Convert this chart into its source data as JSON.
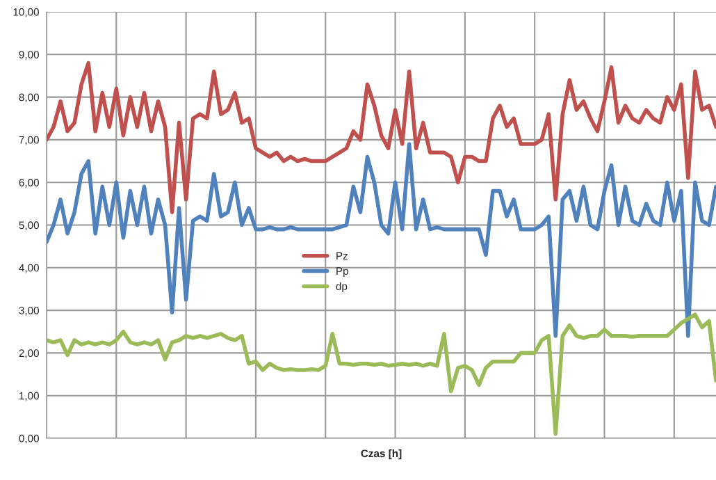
{
  "chart_data": {
    "type": "line",
    "xlabel": "Czas [h]",
    "categories": [
      null,
      null,
      null,
      null,
      null,
      null,
      null,
      null,
      null,
      null,
      null,
      null,
      null,
      null,
      null,
      null,
      null,
      null,
      null,
      null,
      null,
      null,
      null,
      null,
      null,
      null,
      null,
      null,
      null,
      null,
      null,
      null,
      null,
      null,
      null,
      null,
      null,
      null,
      null,
      null,
      null,
      null,
      null,
      null,
      null,
      null,
      null,
      null,
      null,
      null,
      null,
      null,
      null,
      null,
      null,
      null,
      null,
      null,
      null,
      null,
      null,
      null,
      null,
      null,
      null,
      null,
      null,
      null,
      null,
      null,
      null,
      null,
      null,
      null,
      null,
      null,
      null,
      null,
      null,
      null,
      null,
      null,
      null,
      null,
      null,
      null,
      null,
      null,
      null,
      null,
      null,
      null,
      null,
      null,
      null,
      null,
      null
    ],
    "series": [
      {
        "name": "Pz",
        "color": "#c0504d",
        "values": [
          7.0,
          7.3,
          7.9,
          7.2,
          7.4,
          8.3,
          8.8,
          7.2,
          8.1,
          7.3,
          8.2,
          7.1,
          8.0,
          7.3,
          8.1,
          7.2,
          7.9,
          7.3,
          5.3,
          7.4,
          5.6,
          7.5,
          7.6,
          7.5,
          8.6,
          7.6,
          7.7,
          8.1,
          7.4,
          7.5,
          6.8,
          6.7,
          6.6,
          6.7,
          6.5,
          6.6,
          6.5,
          6.55,
          6.5,
          6.5,
          6.5,
          6.6,
          6.7,
          6.8,
          7.2,
          7.0,
          8.3,
          7.8,
          7.1,
          6.8,
          7.7,
          6.9,
          8.6,
          6.8,
          7.4,
          6.7,
          6.7,
          6.7,
          6.6,
          6.0,
          6.6,
          6.6,
          6.5,
          6.5,
          7.5,
          7.8,
          7.3,
          7.5,
          6.9,
          6.9,
          6.9,
          7.0,
          7.6,
          5.6,
          7.6,
          8.4,
          7.7,
          7.9,
          7.5,
          7.2,
          7.9,
          8.7,
          7.4,
          7.8,
          7.5,
          7.4,
          7.7,
          7.5,
          7.4,
          8.0,
          7.7,
          8.3,
          6.1,
          8.6,
          7.7,
          7.8,
          7.3
        ]
      },
      {
        "name": "Pp",
        "color": "#4f81bd",
        "values": [
          4.6,
          5.0,
          5.6,
          4.8,
          5.3,
          6.2,
          6.5,
          4.8,
          5.9,
          5.0,
          6.0,
          4.7,
          5.8,
          5.0,
          5.9,
          4.8,
          5.6,
          5.0,
          2.95,
          5.4,
          3.25,
          5.1,
          5.2,
          5.1,
          6.2,
          5.2,
          5.3,
          6.0,
          5.0,
          5.4,
          4.9,
          4.9,
          4.95,
          4.9,
          4.9,
          4.95,
          4.9,
          4.9,
          4.9,
          4.9,
          4.9,
          4.9,
          4.95,
          5.0,
          5.9,
          5.3,
          6.6,
          6.0,
          5.0,
          4.8,
          6.0,
          4.9,
          6.9,
          4.9,
          5.6,
          4.9,
          4.95,
          4.9,
          4.9,
          4.9,
          4.9,
          4.9,
          4.9,
          4.3,
          5.8,
          5.8,
          5.2,
          5.6,
          4.9,
          4.9,
          4.9,
          5.0,
          5.2,
          2.4,
          5.6,
          5.8,
          5.1,
          5.9,
          5.0,
          4.9,
          5.8,
          6.4,
          5.0,
          5.9,
          5.1,
          5.0,
          5.5,
          5.1,
          5.0,
          6.0,
          5.1,
          5.8,
          2.4,
          6.0,
          5.1,
          5.0,
          5.9
        ]
      },
      {
        "name": "dp",
        "color": "#9bbb59",
        "values": [
          2.3,
          2.25,
          2.3,
          1.95,
          2.3,
          2.2,
          2.25,
          2.2,
          2.25,
          2.2,
          2.3,
          2.5,
          2.25,
          2.2,
          2.25,
          2.2,
          2.3,
          1.85,
          2.25,
          2.3,
          2.4,
          2.35,
          2.4,
          2.35,
          2.4,
          2.45,
          2.35,
          2.3,
          2.4,
          1.75,
          1.8,
          1.6,
          1.75,
          1.65,
          1.6,
          1.62,
          1.6,
          1.6,
          1.62,
          1.6,
          1.7,
          2.45,
          1.75,
          1.75,
          1.72,
          1.75,
          1.75,
          1.72,
          1.75,
          1.7,
          1.72,
          1.75,
          1.72,
          1.75,
          1.7,
          1.75,
          1.7,
          2.45,
          1.1,
          1.65,
          1.7,
          1.6,
          1.25,
          1.65,
          1.8,
          1.8,
          1.8,
          1.8,
          2.0,
          2.0,
          2.0,
          2.3,
          2.4,
          0.1,
          2.4,
          2.65,
          2.4,
          2.35,
          2.4,
          2.4,
          2.55,
          2.4,
          2.4,
          2.4,
          2.38,
          2.4,
          2.4,
          2.4,
          2.4,
          2.4,
          2.55,
          2.7,
          2.8,
          2.9,
          2.6,
          2.75,
          1.35
        ]
      }
    ],
    "ylim": [
      0,
      10
    ],
    "yticks": [
      {
        "value": 0,
        "label": "0,00"
      },
      {
        "value": 1,
        "label": "1,00"
      },
      {
        "value": 2,
        "label": "2,00"
      },
      {
        "value": 3,
        "label": "3,00"
      },
      {
        "value": 4,
        "label": "4,00"
      },
      {
        "value": 5,
        "label": "5,00"
      },
      {
        "value": 6,
        "label": "6,00"
      },
      {
        "value": 7,
        "label": "7,00"
      },
      {
        "value": 8,
        "label": "8,00"
      },
      {
        "value": 9,
        "label": "9,00"
      },
      {
        "value": 10,
        "label": "10,00"
      }
    ],
    "grid": true,
    "legend": "center",
    "marker": "none",
    "line_style": "solid"
  }
}
